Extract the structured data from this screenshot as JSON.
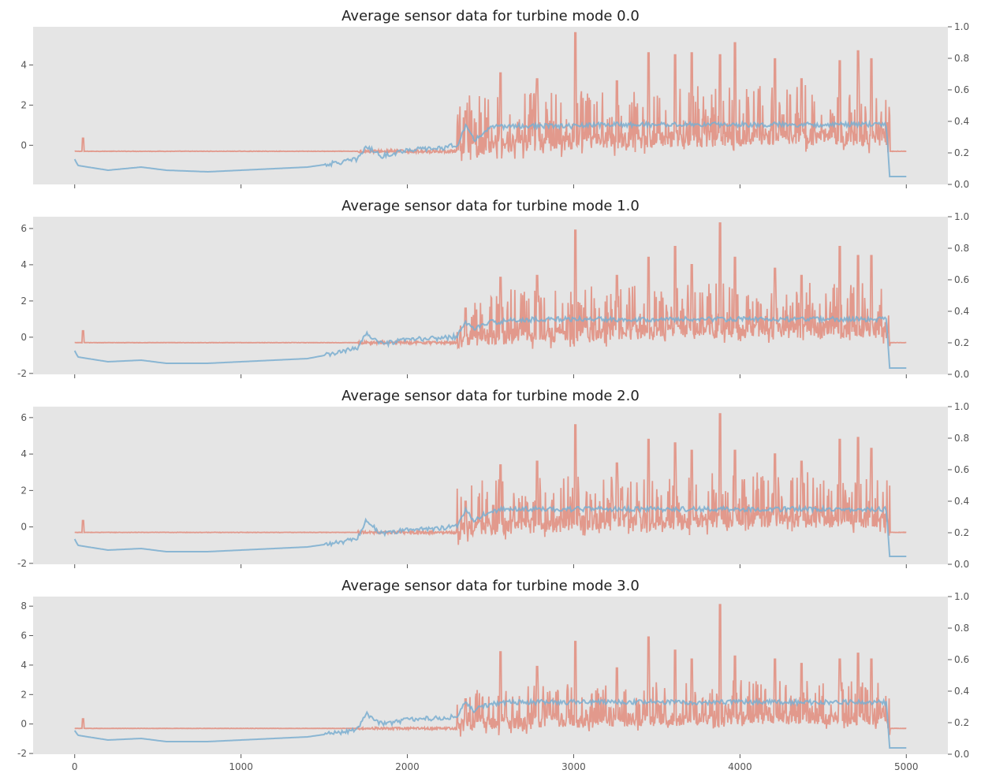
{
  "chart_data": [
    {
      "type": "line",
      "title": "Average sensor data for turbine mode 0.0",
      "xlim": [
        -250,
        5250
      ],
      "ylim": [
        -1.95,
        5.9
      ],
      "yticks": [
        0,
        2,
        4
      ],
      "y2lim": [
        0.0,
        1.0
      ],
      "y2ticks": [
        "0.0",
        "0.2",
        "0.4",
        "0.6",
        "0.8",
        "1.0"
      ],
      "xticks": [
        0,
        1000,
        2000,
        3000,
        4000,
        5000
      ],
      "xtick_labels_visible": false,
      "grid": false,
      "spike_threshold": 0.7,
      "series": [
        {
          "axis": "left",
          "color": "#e07b69",
          "kind": "noisy",
          "points": [
            [
              0,
              -0.3
            ],
            [
              2300,
              -0.3
            ],
            [
              2350,
              -0.05
            ],
            [
              3000,
              0.2
            ],
            [
              4000,
              0.4
            ],
            [
              4880,
              0.4
            ],
            [
              4900,
              -0.3
            ],
            [
              5000,
              -0.3
            ]
          ],
          "spikes": [
            [
              50,
              0.35
            ],
            [
              2350,
              1.7
            ],
            [
              2560,
              3.6
            ],
            [
              2780,
              3.3
            ],
            [
              3010,
              5.6
            ],
            [
              3260,
              3.2
            ],
            [
              3450,
              4.6
            ],
            [
              3610,
              4.5
            ],
            [
              3710,
              4.6
            ],
            [
              3880,
              4.5
            ],
            [
              3970,
              5.1
            ],
            [
              4210,
              4.3
            ],
            [
              4370,
              3.3
            ],
            [
              4600,
              4.2
            ],
            [
              4710,
              4.7
            ],
            [
              4790,
              4.3
            ]
          ]
        },
        {
          "axis": "right",
          "color": "#7aaed0",
          "kind": "smooth",
          "points": [
            [
              0,
              0.16
            ],
            [
              20,
              0.12
            ],
            [
              200,
              0.09
            ],
            [
              400,
              0.11
            ],
            [
              550,
              0.09
            ],
            [
              800,
              0.08
            ],
            [
              1000,
              0.09
            ],
            [
              1200,
              0.1
            ],
            [
              1400,
              0.11
            ],
            [
              1600,
              0.14
            ],
            [
              1700,
              0.16
            ],
            [
              1750,
              0.24
            ],
            [
              1850,
              0.18
            ],
            [
              2000,
              0.22
            ],
            [
              2200,
              0.23
            ],
            [
              2300,
              0.25
            ],
            [
              2350,
              0.37
            ],
            [
              2400,
              0.28
            ],
            [
              2500,
              0.36
            ],
            [
              2600,
              0.37
            ],
            [
              2800,
              0.37
            ],
            [
              3000,
              0.37
            ],
            [
              3200,
              0.38
            ],
            [
              3500,
              0.38
            ],
            [
              4000,
              0.38
            ],
            [
              4400,
              0.38
            ],
            [
              4880,
              0.38
            ],
            [
              4900,
              0.05
            ],
            [
              5000,
              0.05
            ]
          ]
        }
      ]
    },
    {
      "type": "line",
      "title": "Average sensor data for turbine mode 1.0",
      "xlim": [
        -250,
        5250
      ],
      "ylim": [
        -2.05,
        6.65
      ],
      "yticks": [
        -2,
        0,
        2,
        4,
        6
      ],
      "y2lim": [
        0.0,
        1.0
      ],
      "y2ticks": [
        "0.0",
        "0.2",
        "0.4",
        "0.6",
        "0.8",
        "1.0"
      ],
      "xticks": [
        0,
        1000,
        2000,
        3000,
        4000,
        5000
      ],
      "xtick_labels_visible": false,
      "grid": false,
      "spike_threshold": 0.7,
      "series": [
        {
          "axis": "left",
          "color": "#e07b69",
          "kind": "noisy",
          "points": [
            [
              0,
              -0.3
            ],
            [
              2300,
              -0.3
            ],
            [
              2350,
              -0.05
            ],
            [
              3000,
              0.2
            ],
            [
              4000,
              0.4
            ],
            [
              4880,
              0.4
            ],
            [
              4900,
              -0.3
            ],
            [
              5000,
              -0.3
            ]
          ],
          "spikes": [
            [
              50,
              0.35
            ],
            [
              2350,
              1.6
            ],
            [
              2560,
              3.3
            ],
            [
              2780,
              3.4
            ],
            [
              3010,
              5.9
            ],
            [
              3260,
              3.4
            ],
            [
              3450,
              4.4
            ],
            [
              3610,
              5.0
            ],
            [
              3710,
              4.0
            ],
            [
              3880,
              6.3
            ],
            [
              3970,
              4.4
            ],
            [
              4210,
              3.8
            ],
            [
              4370,
              3.4
            ],
            [
              4600,
              5.0
            ],
            [
              4710,
              4.5
            ],
            [
              4790,
              4.5
            ]
          ]
        },
        {
          "axis": "right",
          "color": "#7aaed0",
          "kind": "smooth",
          "points": [
            [
              0,
              0.15
            ],
            [
              20,
              0.11
            ],
            [
              200,
              0.08
            ],
            [
              400,
              0.09
            ],
            [
              550,
              0.07
            ],
            [
              800,
              0.07
            ],
            [
              1000,
              0.08
            ],
            [
              1200,
              0.09
            ],
            [
              1400,
              0.1
            ],
            [
              1600,
              0.14
            ],
            [
              1700,
              0.17
            ],
            [
              1750,
              0.26
            ],
            [
              1850,
              0.19
            ],
            [
              2000,
              0.22
            ],
            [
              2200,
              0.23
            ],
            [
              2300,
              0.24
            ],
            [
              2350,
              0.33
            ],
            [
              2400,
              0.29
            ],
            [
              2500,
              0.33
            ],
            [
              2600,
              0.34
            ],
            [
              2800,
              0.35
            ],
            [
              3000,
              0.35
            ],
            [
              3200,
              0.35
            ],
            [
              3500,
              0.35
            ],
            [
              4000,
              0.35
            ],
            [
              4400,
              0.35
            ],
            [
              4880,
              0.35
            ],
            [
              4900,
              0.04
            ],
            [
              5000,
              0.04
            ]
          ]
        }
      ]
    },
    {
      "type": "line",
      "title": "Average sensor data for turbine mode 2.0",
      "xlim": [
        -250,
        5250
      ],
      "ylim": [
        -2.05,
        6.6
      ],
      "yticks": [
        -2,
        0,
        2,
        4,
        6
      ],
      "y2lim": [
        0.0,
        1.0
      ],
      "y2ticks": [
        "0.0",
        "0.2",
        "0.4",
        "0.6",
        "0.8",
        "1.0"
      ],
      "xticks": [
        0,
        1000,
        2000,
        3000,
        4000,
        5000
      ],
      "xtick_labels_visible": false,
      "grid": false,
      "spike_threshold": 0.7,
      "series": [
        {
          "axis": "left",
          "color": "#e07b69",
          "kind": "noisy",
          "points": [
            [
              0,
              -0.3
            ],
            [
              2300,
              -0.3
            ],
            [
              2350,
              -0.05
            ],
            [
              3000,
              0.2
            ],
            [
              4000,
              0.4
            ],
            [
              4880,
              0.4
            ],
            [
              4900,
              -0.3
            ],
            [
              5000,
              -0.3
            ]
          ],
          "spikes": [
            [
              50,
              0.35
            ],
            [
              2350,
              1.4
            ],
            [
              2560,
              3.4
            ],
            [
              2780,
              3.6
            ],
            [
              3010,
              5.6
            ],
            [
              3260,
              3.5
            ],
            [
              3450,
              4.8
            ],
            [
              3610,
              4.6
            ],
            [
              3710,
              4.2
            ],
            [
              3880,
              6.2
            ],
            [
              3970,
              4.2
            ],
            [
              4210,
              4.0
            ],
            [
              4370,
              3.6
            ],
            [
              4600,
              4.8
            ],
            [
              4710,
              4.9
            ],
            [
              4790,
              4.3
            ]
          ]
        },
        {
          "axis": "right",
          "color": "#7aaed0",
          "kind": "smooth",
          "points": [
            [
              0,
              0.16
            ],
            [
              20,
              0.12
            ],
            [
              200,
              0.09
            ],
            [
              400,
              0.1
            ],
            [
              550,
              0.08
            ],
            [
              800,
              0.08
            ],
            [
              1000,
              0.09
            ],
            [
              1200,
              0.1
            ],
            [
              1400,
              0.11
            ],
            [
              1600,
              0.14
            ],
            [
              1700,
              0.16
            ],
            [
              1750,
              0.28
            ],
            [
              1850,
              0.19
            ],
            [
              2000,
              0.22
            ],
            [
              2200,
              0.23
            ],
            [
              2300,
              0.24
            ],
            [
              2350,
              0.35
            ],
            [
              2400,
              0.28
            ],
            [
              2500,
              0.34
            ],
            [
              2600,
              0.35
            ],
            [
              2800,
              0.35
            ],
            [
              3000,
              0.35
            ],
            [
              3200,
              0.35
            ],
            [
              3500,
              0.35
            ],
            [
              4000,
              0.35
            ],
            [
              4400,
              0.35
            ],
            [
              4880,
              0.35
            ],
            [
              4900,
              0.05
            ],
            [
              5000,
              0.05
            ]
          ]
        }
      ]
    },
    {
      "type": "line",
      "title": "Average sensor data for turbine mode 3.0",
      "xlim": [
        -250,
        5250
      ],
      "ylim": [
        -2.05,
        8.65
      ],
      "yticks": [
        -2,
        0,
        2,
        4,
        6,
        8
      ],
      "y2lim": [
        0.0,
        1.0
      ],
      "y2ticks": [
        "0.0",
        "0.2",
        "0.4",
        "0.6",
        "0.8",
        "1.0"
      ],
      "xticks": [
        0,
        1000,
        2000,
        3000,
        4000,
        5000
      ],
      "xtick_labels": [
        "0",
        "1000",
        "2000",
        "3000",
        "4000",
        "5000"
      ],
      "xtick_labels_visible": true,
      "grid": false,
      "spike_threshold": 0.7,
      "series": [
        {
          "axis": "left",
          "color": "#e07b69",
          "kind": "noisy",
          "points": [
            [
              0,
              -0.3
            ],
            [
              2300,
              -0.3
            ],
            [
              2350,
              -0.05
            ],
            [
              3000,
              0.2
            ],
            [
              4000,
              0.4
            ],
            [
              4880,
              0.4
            ],
            [
              4900,
              -0.3
            ],
            [
              5000,
              -0.3
            ]
          ],
          "spikes": [
            [
              50,
              0.35
            ],
            [
              2350,
              1.7
            ],
            [
              2560,
              4.9
            ],
            [
              2780,
              3.9
            ],
            [
              3010,
              5.6
            ],
            [
              3260,
              3.8
            ],
            [
              3450,
              5.9
            ],
            [
              3610,
              5.0
            ],
            [
              3710,
              4.4
            ],
            [
              3880,
              8.1
            ],
            [
              3970,
              4.6
            ],
            [
              4210,
              4.4
            ],
            [
              4370,
              4.1
            ],
            [
              4600,
              4.4
            ],
            [
              4710,
              4.8
            ],
            [
              4790,
              4.4
            ]
          ]
        },
        {
          "axis": "right",
          "color": "#7aaed0",
          "kind": "smooth",
          "points": [
            [
              0,
              0.15
            ],
            [
              20,
              0.12
            ],
            [
              200,
              0.09
            ],
            [
              400,
              0.1
            ],
            [
              550,
              0.08
            ],
            [
              800,
              0.08
            ],
            [
              1000,
              0.09
            ],
            [
              1200,
              0.1
            ],
            [
              1400,
              0.11
            ],
            [
              1600,
              0.14
            ],
            [
              1700,
              0.16
            ],
            [
              1750,
              0.26
            ],
            [
              1850,
              0.19
            ],
            [
              2000,
              0.22
            ],
            [
              2200,
              0.23
            ],
            [
              2300,
              0.24
            ],
            [
              2350,
              0.33
            ],
            [
              2400,
              0.28
            ],
            [
              2500,
              0.32
            ],
            [
              2600,
              0.33
            ],
            [
              2800,
              0.33
            ],
            [
              3000,
              0.33
            ],
            [
              3200,
              0.33
            ],
            [
              3500,
              0.33
            ],
            [
              4000,
              0.33
            ],
            [
              4400,
              0.33
            ],
            [
              4880,
              0.33
            ],
            [
              4900,
              0.04
            ],
            [
              5000,
              0.04
            ]
          ]
        }
      ]
    }
  ]
}
